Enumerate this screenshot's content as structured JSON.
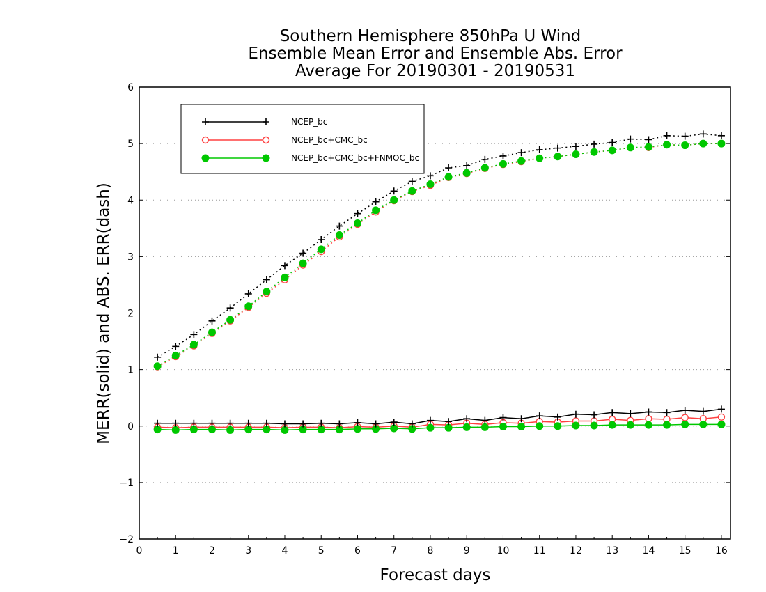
{
  "chart_data": {
    "type": "line",
    "title_lines": [
      "Southern Hemisphere 850hPa U Wind",
      "Ensemble Mean Error and Ensemble Abs. Error",
      "Average For 20190301 - 20190531"
    ],
    "xlabel": "Forecast days",
    "ylabel": "MERR(solid) and ABS. ERR(dash)",
    "xlim": [
      0,
      16.25
    ],
    "ylim": [
      -2,
      6
    ],
    "x_ticks": [
      "0",
      "1",
      "2",
      "3",
      "4",
      "5",
      "6",
      "7",
      "8",
      "9",
      "10",
      "11",
      "12",
      "13",
      "14",
      "15",
      "16"
    ],
    "y_ticks": [
      "−2",
      "−1",
      "0",
      "1",
      "2",
      "3",
      "4",
      "5",
      "6"
    ],
    "y_tick_values": [
      -2,
      -1,
      0,
      1,
      2,
      3,
      4,
      5,
      6
    ],
    "grid": "horizontal dotted",
    "legend_position": "top-left",
    "x": [
      0.5,
      1,
      1.5,
      2,
      2.5,
      3,
      3.5,
      4,
      4.5,
      5,
      5.5,
      6,
      6.5,
      7,
      7.5,
      8,
      8.5,
      9,
      9.5,
      10,
      10.5,
      11,
      11.5,
      12,
      12.5,
      13,
      13.5,
      14,
      14.5,
      15,
      15.5,
      16
    ],
    "series": [
      {
        "name": "NCEP_bc",
        "color": "#000000",
        "marker": "plus",
        "merr": [
          0.05,
          0.05,
          0.05,
          0.05,
          0.05,
          0.05,
          0.05,
          0.04,
          0.04,
          0.05,
          0.04,
          0.06,
          0.04,
          0.07,
          0.04,
          0.1,
          0.08,
          0.13,
          0.1,
          0.15,
          0.13,
          0.18,
          0.16,
          0.21,
          0.2,
          0.24,
          0.22,
          0.25,
          0.24,
          0.28,
          0.26,
          0.3
        ],
        "abs_err": [
          1.22,
          1.41,
          1.62,
          1.86,
          2.09,
          2.34,
          2.59,
          2.84,
          3.06,
          3.3,
          3.54,
          3.76,
          3.97,
          4.16,
          4.33,
          4.43,
          4.57,
          4.61,
          4.72,
          4.78,
          4.84,
          4.89,
          4.92,
          4.95,
          4.99,
          5.02,
          5.08,
          5.07,
          5.14,
          5.13,
          5.17,
          5.14
        ]
      },
      {
        "name": "NCEP_bc+CMC_bc",
        "color": "#ff4040",
        "marker": "open-circle",
        "merr": [
          -0.02,
          -0.03,
          -0.02,
          -0.02,
          -0.02,
          -0.02,
          -0.02,
          -0.03,
          -0.02,
          -0.02,
          -0.03,
          -0.01,
          -0.02,
          0.0,
          -0.02,
          0.03,
          0.02,
          0.05,
          0.03,
          0.06,
          0.05,
          0.08,
          0.07,
          0.09,
          0.09,
          0.12,
          0.1,
          0.13,
          0.12,
          0.15,
          0.13,
          0.16
        ],
        "abs_err": [
          1.05,
          1.23,
          1.42,
          1.64,
          1.86,
          2.1,
          2.35,
          2.59,
          2.85,
          3.09,
          3.35,
          3.57,
          3.79,
          3.99,
          4.15,
          4.26,
          4.4,
          4.47,
          4.56,
          4.63,
          4.68,
          4.74,
          4.77,
          4.81,
          4.85,
          4.88,
          4.93,
          4.93,
          4.98,
          4.97,
          5.0,
          5.0
        ]
      },
      {
        "name": "NCEP_bc+CMC_bc+FNMOC_bc",
        "color": "#00c800",
        "marker": "filled-circle",
        "merr": [
          -0.06,
          -0.07,
          -0.06,
          -0.06,
          -0.07,
          -0.06,
          -0.06,
          -0.07,
          -0.06,
          -0.06,
          -0.06,
          -0.05,
          -0.05,
          -0.04,
          -0.05,
          -0.03,
          -0.03,
          -0.02,
          -0.02,
          -0.01,
          -0.01,
          0.0,
          0.0,
          0.01,
          0.01,
          0.02,
          0.02,
          0.02,
          0.02,
          0.03,
          0.03,
          0.03
        ],
        "abs_err": [
          1.06,
          1.25,
          1.44,
          1.66,
          1.88,
          2.12,
          2.38,
          2.63,
          2.88,
          3.13,
          3.38,
          3.59,
          3.82,
          4.0,
          4.16,
          4.28,
          4.41,
          4.48,
          4.57,
          4.64,
          4.69,
          4.74,
          4.77,
          4.81,
          4.85,
          4.88,
          4.93,
          4.94,
          4.98,
          4.97,
          5.0,
          5.0
        ]
      }
    ]
  }
}
